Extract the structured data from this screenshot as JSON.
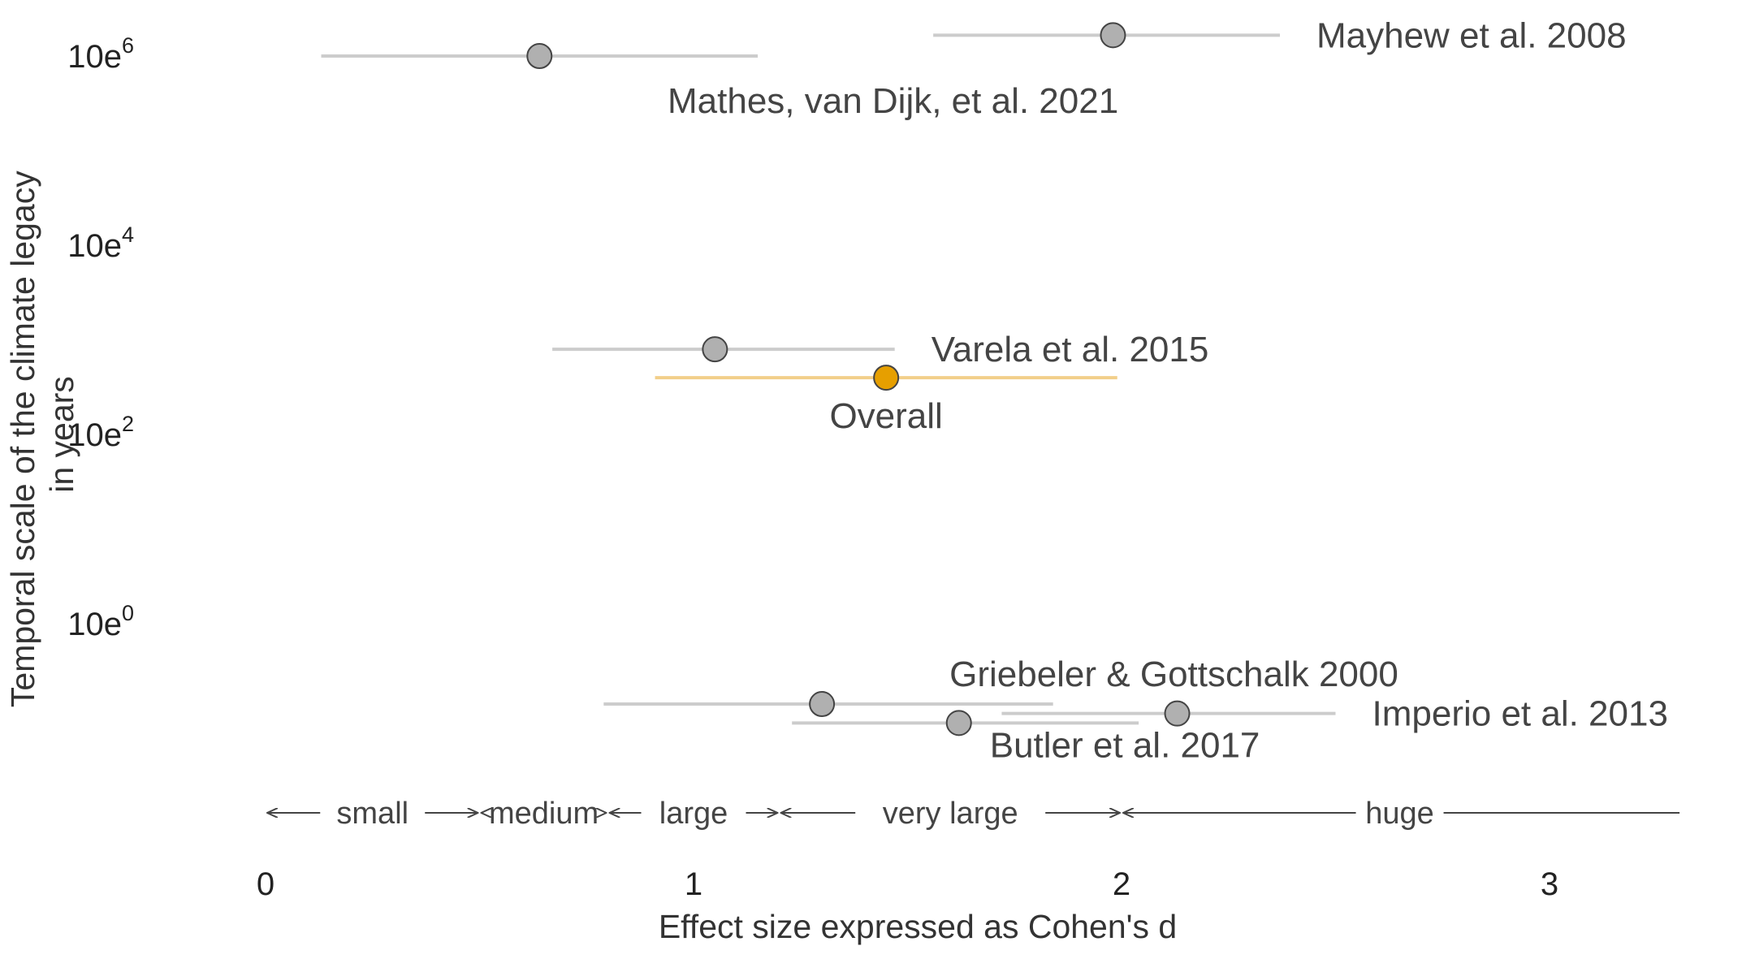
{
  "chart_data": {
    "type": "scatter",
    "title": "",
    "xlabel": "Effect size expressed as Cohen's d",
    "ylabel_lines": [
      "Temporal scale of the climate legacy",
      "in years"
    ],
    "xlim": [
      0,
      3.3
    ],
    "x_ticks": [
      0,
      1,
      2,
      3
    ],
    "x_tick_labels": [
      "0",
      "1",
      "2",
      "3"
    ],
    "y_scale": "log10",
    "y_ticks": [
      {
        "base": "10e",
        "exp": "6",
        "log10_value": 6
      },
      {
        "base": "10e",
        "exp": "4",
        "log10_value": 4
      },
      {
        "base": "10e",
        "exp": "2",
        "log10_value": 2
      },
      {
        "base": "10e",
        "exp": "0",
        "log10_value": 0
      }
    ],
    "points": [
      {
        "label": "Mayhew et al. 2008",
        "x": 1.98,
        "ci": [
          1.56,
          2.37
        ],
        "log10_y": 6.22,
        "color": "#b0b0b0",
        "label_pos": "right"
      },
      {
        "label": "Mathes, van Dijk, et al. 2021",
        "x": 0.64,
        "ci": [
          0.13,
          1.15
        ],
        "log10_y": 6.0,
        "color": "#b0b0b0",
        "label_pos": "below-right"
      },
      {
        "label": "Varela et al. 2015",
        "x": 1.05,
        "ci": [
          0.67,
          1.47
        ],
        "log10_y": 2.9,
        "color": "#b0b0b0",
        "label_pos": "right"
      },
      {
        "label": "Overall",
        "x": 1.45,
        "ci": [
          0.91,
          1.99
        ],
        "log10_y": 2.6,
        "color": "#e69f00",
        "label_pos": "below"
      },
      {
        "label": "Griebeler & Gottschalk 2000",
        "x": 1.3,
        "ci": [
          0.79,
          1.84
        ],
        "log10_y": -0.85,
        "color": "#b0b0b0",
        "label_pos": "above-right"
      },
      {
        "label": "Imperio et al. 2013",
        "x": 2.13,
        "ci": [
          1.72,
          2.5
        ],
        "log10_y": -0.95,
        "color": "#b0b0b0",
        "label_pos": "right"
      },
      {
        "label": "Butler et al. 2017",
        "x": 1.62,
        "ci": [
          1.23,
          2.04
        ],
        "log10_y": -1.05,
        "color": "#b0b0b0",
        "label_pos": "below-right"
      }
    ],
    "effect_size_categories": [
      {
        "label": "small",
        "from": 0.0,
        "to": 0.5
      },
      {
        "label": "medium",
        "from": 0.5,
        "to": 0.8
      },
      {
        "label": "large",
        "from": 0.8,
        "to": 1.2
      },
      {
        "label": "very large",
        "from": 1.2,
        "to": 2.0
      },
      {
        "label": "huge",
        "from": 2.0,
        "to": 3.3
      }
    ],
    "grid": false,
    "legend": "none",
    "colors": {
      "study": "#b0b0b0",
      "overall": "#e69f00",
      "ci_study": "#cccccc",
      "ci_overall": "#f2cf8a"
    }
  }
}
